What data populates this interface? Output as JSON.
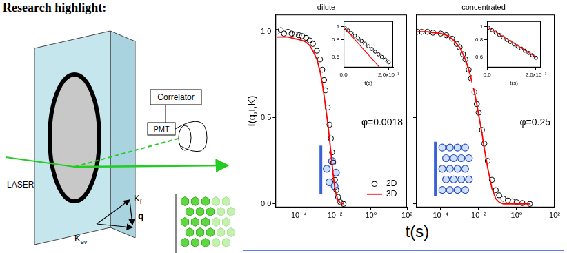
{
  "header": {
    "title": "Research highlight:"
  },
  "diagram": {
    "source": "LASER",
    "correlator": "Correlator",
    "detector": "PMT",
    "k_f": {
      "text": "K",
      "sub": "f"
    },
    "k_ev": {
      "text": "K",
      "sub": "ev"
    },
    "q": "q"
  },
  "x_label": "t(s)",
  "chart_data": [
    {
      "type": "scatter",
      "title": "dilute",
      "y_label": "f(q,t,K)",
      "annotation": "φ=0.0018",
      "log": "x",
      "grid": false,
      "legend": "lower right",
      "xlim": [
        5e-06,
        100
      ],
      "xticks": [
        {
          "value": 0.0001,
          "label": "10⁻⁴"
        },
        {
          "value": 0.01,
          "label": "10⁻²"
        },
        {
          "value": 1,
          "label": "10⁰"
        },
        {
          "value": 100,
          "label": "10²"
        }
      ],
      "ylim": [
        -0.02,
        1.1
      ],
      "yticks": [
        {
          "value": 0,
          "label": "0.0"
        },
        0.5,
        {
          "value": 1,
          "label": "1.0"
        }
      ],
      "x": [
        6e-06,
        1e-05,
        1.5e-05,
        2.5e-05,
        4e-05,
        6e-05,
        0.0001,
        0.00015,
        0.00025,
        0.0004,
        0.0006,
        0.001,
        0.0015,
        0.002,
        0.0025,
        0.003,
        0.004,
        0.005,
        0.006,
        0.007,
        0.008,
        0.01,
        0.012,
        0.015,
        0.02,
        0.03
      ],
      "series": [
        {
          "name": "2D",
          "type": "scatter",
          "marker": "circle",
          "color": "#000000",
          "values": [
            1.0,
            1.01,
            0.99,
            1.0,
            0.99,
            0.985,
            0.98,
            0.975,
            0.965,
            0.95,
            0.93,
            0.89,
            0.84,
            0.78,
            0.72,
            0.66,
            0.56,
            0.46,
            0.38,
            0.3,
            0.24,
            0.14,
            0.08,
            0.04,
            0.01,
            0.0
          ]
        },
        {
          "name": "3D",
          "type": "line",
          "line_style": "solid",
          "color": "#ff0000",
          "values": [
            0.97,
            0.97,
            0.97,
            0.97,
            0.965,
            0.96,
            0.955,
            0.95,
            0.94,
            0.92,
            0.89,
            0.84,
            0.77,
            0.7,
            0.63,
            0.57,
            0.47,
            0.38,
            0.3,
            0.23,
            0.17,
            0.09,
            0.05,
            0.02,
            0.005,
            0.0
          ]
        }
      ],
      "inset": {
        "type": "scatter",
        "x_label": "t(s)",
        "log": "y",
        "grid": false,
        "xlim": [
          0,
          0.0022
        ],
        "xticks": [
          {
            "value": 0,
            "label": "0.0"
          },
          {
            "value": 0.002,
            "label": "2.0x10⁻³"
          }
        ],
        "ylim": [
          0.5,
          1.1
        ],
        "yticks": [
          0.6,
          0.8,
          1
        ],
        "series": [
          {
            "type": "scatter",
            "marker": "circle",
            "color": "#000000",
            "x": [
              5e-05,
              0.0002,
              0.00035,
              0.0005,
              0.00065,
              0.0008,
              0.00095,
              0.0011,
              0.00125,
              0.0014,
              0.00155,
              0.0017,
              0.00185,
              0.002
            ],
            "values": [
              0.985,
              0.941,
              0.899,
              0.859,
              0.821,
              0.785,
              0.75,
              0.717,
              0.685,
              0.654,
              0.625,
              0.598,
              0.571,
              0.546
            ]
          },
          {
            "type": "line",
            "line_style": "solid",
            "color": "#ff0000",
            "x": [
              0,
              0.0016
            ],
            "values": [
              1.0,
              0.5
            ]
          }
        ]
      }
    },
    {
      "type": "scatter",
      "title": "concentrated",
      "annotation": "φ=0.25",
      "log": "x",
      "grid": false,
      "tick_labels": "x",
      "xlim": [
        5e-06,
        100
      ],
      "xticks": [
        {
          "value": 0.0001,
          "label": "10⁻⁴"
        },
        {
          "value": 0.01,
          "label": "10⁻²"
        },
        {
          "value": 1,
          "label": "10⁰"
        },
        {
          "value": 100,
          "label": "10²"
        }
      ],
      "ylim": [
        -0.02,
        1.1
      ],
      "yticks": [
        {
          "value": 0,
          "label": "0.0"
        },
        0.5,
        {
          "value": 1,
          "label": "1.0"
        }
      ],
      "x": [
        6e-06,
        1e-05,
        2e-05,
        4e-05,
        0.0001,
        0.0002,
        0.0004,
        0.0007,
        0.001,
        0.0015,
        0.002,
        0.003,
        0.004,
        0.006,
        0.008,
        0.01,
        0.015,
        0.02,
        0.03,
        0.05,
        0.08,
        0.12,
        0.2,
        0.35,
        0.6,
        1,
        2,
        5
      ],
      "series": [
        {
          "name": "2D",
          "type": "scatter",
          "marker": "circle",
          "color": "#000000",
          "values": [
            1.0,
            1.0,
            1.0,
            0.995,
            0.99,
            0.98,
            0.96,
            0.93,
            0.91,
            0.87,
            0.84,
            0.78,
            0.73,
            0.65,
            0.58,
            0.53,
            0.43,
            0.35,
            0.25,
            0.14,
            0.08,
            0.05,
            0.03,
            0.02,
            0.015,
            0.01,
            0.005,
            0.0
          ]
        },
        {
          "name": "3D",
          "type": "line",
          "line_style": "solid",
          "color": "#ff0000",
          "values": [
            1.0,
            1.0,
            1.0,
            0.995,
            0.99,
            0.98,
            0.96,
            0.93,
            0.91,
            0.87,
            0.84,
            0.78,
            0.73,
            0.65,
            0.58,
            0.52,
            0.41,
            0.32,
            0.21,
            0.09,
            0.03,
            0.01,
            0.0,
            0.0,
            0.0,
            0.0,
            0.0,
            0.0
          ]
        }
      ],
      "inset": {
        "type": "scatter",
        "x_label": "t(s)",
        "log": "y",
        "grid": false,
        "xlim": [
          0,
          0.0022
        ],
        "xticks": [
          {
            "value": 0,
            "label": "0.0"
          },
          {
            "value": 0.002,
            "label": "2.0x10⁻³"
          }
        ],
        "ylim": [
          0.5,
          1.1
        ],
        "yticks": [
          0.6,
          0.8,
          1
        ],
        "series": [
          {
            "type": "scatter",
            "marker": "circle",
            "color": "#000000",
            "x": [
              5e-05,
              0.0002,
              0.00035,
              0.0005,
              0.00065,
              0.0008,
              0.00095,
              0.0011,
              0.00125,
              0.0014,
              0.00155,
              0.0017,
              0.00185,
              0.002
            ],
            "values": [
              0.985,
              0.945,
              0.905,
              0.87,
              0.835,
              0.8,
              0.77,
              0.74,
              0.715,
              0.69,
              0.665,
              0.64,
              0.615,
              0.59
            ]
          },
          {
            "type": "line",
            "line_style": "solid",
            "color": "#ff0000",
            "x": [
              0,
              0.0005,
              0.001,
              0.0015,
              0.002
            ],
            "values": [
              1.0,
              0.88,
              0.775,
              0.68,
              0.595
            ]
          }
        ]
      }
    }
  ]
}
